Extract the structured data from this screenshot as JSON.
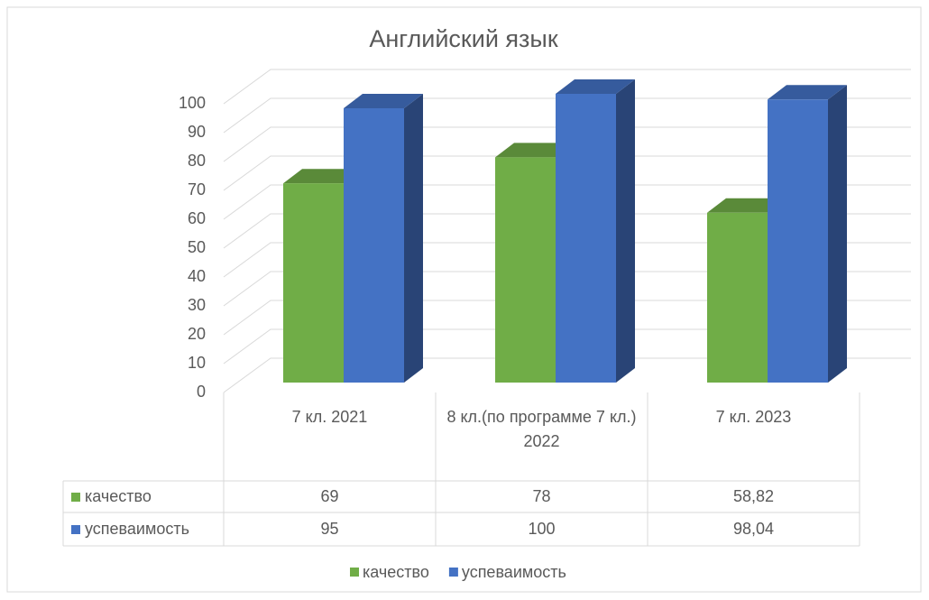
{
  "chart_data": {
    "type": "bar3d",
    "title": "Английский язык",
    "categories": [
      "7 кл.  2021",
      "8 кл.(по программе 7 кл.) 2022",
      "7 кл. 2023"
    ],
    "series": [
      {
        "name": "качество",
        "color": "#70ad47",
        "values": [
          69,
          78,
          58.82
        ],
        "value_labels": [
          "69",
          "78",
          "58,82"
        ]
      },
      {
        "name": "успеваимость",
        "color": "#4472c4",
        "values": [
          95,
          100,
          98.04
        ],
        "value_labels": [
          "95",
          "100",
          "98,04"
        ]
      }
    ],
    "ylim": [
      0,
      100
    ],
    "yticks": [
      0,
      10,
      20,
      30,
      40,
      50,
      60,
      70,
      80,
      90,
      100
    ],
    "grid": true,
    "legend": "bottom",
    "data_table": true
  }
}
